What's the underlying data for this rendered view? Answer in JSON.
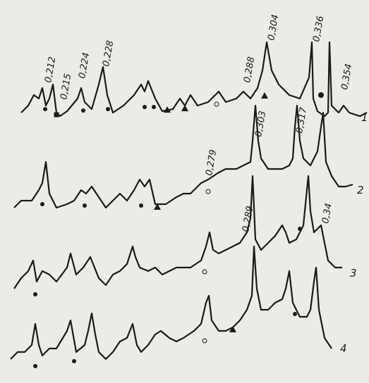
{
  "figure": {
    "peak_labels": [
      "0,212",
      "0,215",
      "0,224",
      "0,228",
      "0,288",
      "0,304",
      "0,336",
      "0,354",
      "0,303",
      "0,317",
      "0,279",
      "0,289",
      "0,34"
    ],
    "trace_labels": [
      "1",
      "2",
      "3",
      "4"
    ]
  }
}
